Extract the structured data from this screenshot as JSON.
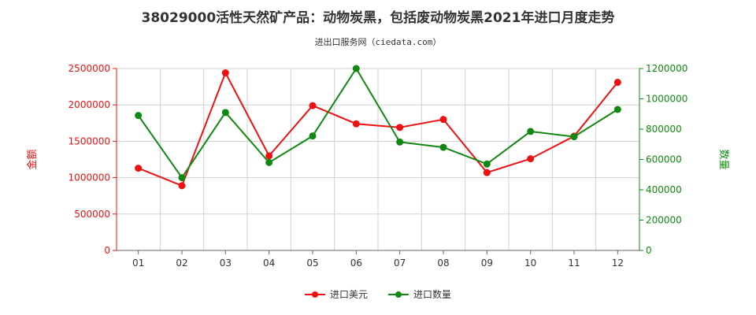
{
  "title": "38029000活性天然矿产品：动物炭黑，包括废动物炭黑2021年进口月度走势",
  "subtitle": "进出口服务网（ciedata.com）",
  "colors": {
    "amount": "#ee1111",
    "quantity": "#118811",
    "grid": "#d0d0d0",
    "axis": "#666666"
  },
  "chart_data": {
    "type": "line",
    "categories": [
      "01",
      "02",
      "03",
      "04",
      "05",
      "06",
      "07",
      "08",
      "09",
      "10",
      "11",
      "12"
    ],
    "y_left": {
      "label": "金额",
      "ylim": [
        0,
        2500000
      ],
      "ticks": [
        0,
        500000,
        1000000,
        1500000,
        2000000,
        2500000
      ],
      "tick_labels": [
        "0",
        "500000",
        "1000000",
        "1500000",
        "2000000",
        "2500000"
      ]
    },
    "y_right": {
      "label": "数量",
      "ylim": [
        0,
        1200000
      ],
      "ticks": [
        0,
        200000,
        400000,
        600000,
        800000,
        1000000,
        1200000
      ],
      "tick_labels": [
        "0",
        "200000",
        "400000",
        "600000",
        "800000",
        "1000000",
        "1200000"
      ]
    },
    "series": [
      {
        "name": "进口美元",
        "axis": "left",
        "values": [
          1130000,
          890000,
          2440000,
          1300000,
          1990000,
          1740000,
          1690000,
          1800000,
          1070000,
          1260000,
          1570000,
          2310000
        ]
      },
      {
        "name": "进口数量",
        "axis": "right",
        "values": [
          890000,
          480000,
          910000,
          580000,
          755000,
          1200000,
          715000,
          680000,
          570000,
          785000,
          750000,
          930000
        ]
      }
    ],
    "grid": true,
    "legend_position": "bottom-center"
  }
}
